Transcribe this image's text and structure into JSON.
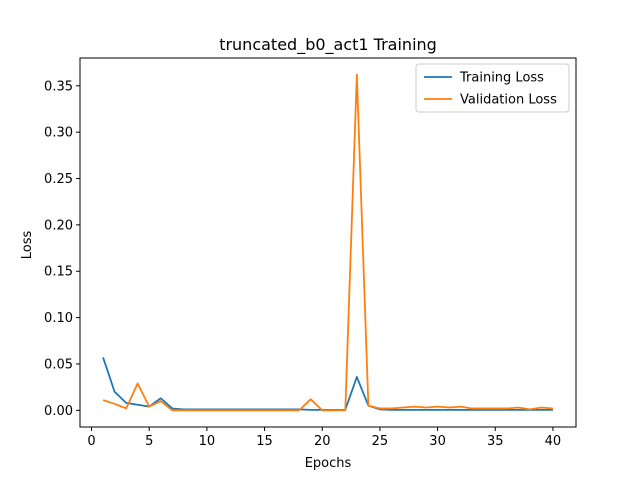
{
  "chart_data": {
    "type": "line",
    "title": "truncated_b0_act1 Training",
    "xlabel": "Epochs",
    "ylabel": "Loss",
    "xlim": [
      -1.0,
      42.0
    ],
    "ylim": [
      -0.018,
      0.38
    ],
    "xticks": [
      0,
      5,
      10,
      15,
      20,
      25,
      30,
      35,
      40
    ],
    "yticks": [
      0.0,
      0.05,
      0.1,
      0.15,
      0.2,
      0.25,
      0.3,
      0.35
    ],
    "ytick_labels": [
      "0.00",
      "0.05",
      "0.10",
      "0.15",
      "0.20",
      "0.25",
      "0.30",
      "0.35"
    ],
    "grid": false,
    "legend_position": "top-right",
    "x": [
      1,
      2,
      3,
      4,
      5,
      6,
      7,
      8,
      9,
      10,
      11,
      12,
      13,
      14,
      15,
      16,
      17,
      18,
      19,
      20,
      21,
      22,
      23,
      24,
      25,
      26,
      27,
      28,
      29,
      30,
      31,
      32,
      33,
      34,
      35,
      36,
      37,
      38,
      39,
      40
    ],
    "series": [
      {
        "name": "Training Loss",
        "color": "#1f77b4",
        "values": [
          0.057,
          0.02,
          0.008,
          0.006,
          0.004,
          0.013,
          0.002,
          0.001,
          0.001,
          0.001,
          0.001,
          0.001,
          0.001,
          0.001,
          0.001,
          0.001,
          0.001,
          0.001,
          0.0005,
          0.0005,
          0.0005,
          0.0005,
          0.036,
          0.005,
          0.001,
          0.0005,
          0.0005,
          0.0005,
          0.0005,
          0.0005,
          0.0005,
          0.0005,
          0.0005,
          0.0005,
          0.0005,
          0.0005,
          0.0005,
          0.0005,
          0.0005,
          0.0005
        ]
      },
      {
        "name": "Validation Loss",
        "color": "#ff7f0e",
        "values": [
          0.011,
          0.007,
          0.002,
          0.029,
          0.004,
          0.01,
          0.0,
          0.0,
          0.0,
          0.0,
          0.0,
          0.0,
          0.0,
          0.0,
          0.0,
          0.0,
          0.0,
          0.0,
          0.012,
          0.0,
          0.0,
          0.0,
          0.362,
          0.005,
          0.002,
          0.002,
          0.003,
          0.004,
          0.003,
          0.004,
          0.003,
          0.004,
          0.002,
          0.002,
          0.002,
          0.002,
          0.003,
          0.001,
          0.003,
          0.002
        ]
      }
    ]
  }
}
